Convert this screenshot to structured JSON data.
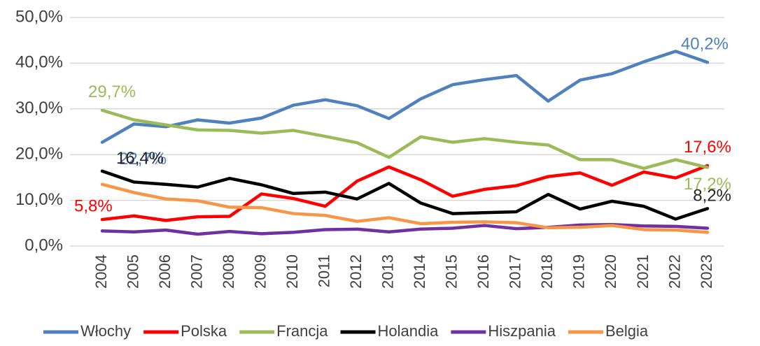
{
  "chart_data": {
    "type": "line",
    "categories": [
      "2004",
      "2005",
      "2006",
      "2007",
      "2008",
      "2009",
      "2010",
      "2011",
      "2012",
      "2013",
      "2014",
      "2015",
      "2016",
      "2017",
      "2018",
      "2019",
      "2020",
      "2021",
      "2022",
      "2023"
    ],
    "ylim": [
      0,
      50
    ],
    "yticks": [
      {
        "value": 0,
        "label": "0,0%"
      },
      {
        "value": 10,
        "label": "10,0%"
      },
      {
        "value": 20,
        "label": "20,0%"
      },
      {
        "value": 30,
        "label": "30,0%"
      },
      {
        "value": 40,
        "label": "40,0%"
      },
      {
        "value": 50,
        "label": "50,0%"
      }
    ],
    "grid": true,
    "legend": "bottom",
    "series": [
      {
        "name": "Włochy",
        "color": "#4f81bd",
        "values": [
          22.7,
          26.7,
          26.1,
          27.6,
          26.9,
          28.0,
          30.8,
          32.0,
          30.7,
          27.9,
          32.2,
          35.3,
          36.4,
          37.3,
          31.7,
          36.3,
          37.7,
          40.3,
          42.6,
          40.2
        ],
        "value_labels": [
          "22,7%",
          null,
          null,
          null,
          null,
          null,
          null,
          null,
          null,
          null,
          null,
          null,
          null,
          null,
          null,
          null,
          null,
          null,
          null,
          "40,2%"
        ]
      },
      {
        "name": "Polska",
        "color": "#ff0000",
        "values": [
          5.8,
          6.6,
          5.6,
          6.4,
          6.5,
          11.4,
          10.4,
          8.7,
          14.2,
          17.3,
          14.5,
          10.9,
          12.4,
          13.2,
          15.2,
          16.0,
          13.3,
          16.2,
          14.9,
          17.6
        ],
        "value_labels": [
          "5,8%",
          null,
          null,
          null,
          null,
          null,
          null,
          null,
          null,
          null,
          null,
          null,
          null,
          null,
          null,
          null,
          null,
          null,
          null,
          "17,6%"
        ]
      },
      {
        "name": "Francja",
        "color": "#9bbb59",
        "values": [
          29.7,
          27.6,
          26.5,
          25.4,
          25.3,
          24.7,
          25.3,
          24.0,
          22.6,
          19.4,
          23.9,
          22.7,
          23.5,
          22.7,
          22.1,
          18.9,
          18.9,
          17.0,
          18.9,
          17.2
        ],
        "value_labels": [
          "29,7%",
          null,
          null,
          null,
          null,
          null,
          null,
          null,
          null,
          null,
          null,
          null,
          null,
          null,
          null,
          null,
          null,
          null,
          null,
          "17,2%"
        ]
      },
      {
        "name": "Holandia",
        "color": "#000000",
        "values": [
          16.4,
          14.0,
          13.5,
          12.9,
          14.8,
          13.4,
          11.5,
          11.8,
          10.3,
          13.7,
          9.4,
          7.1,
          7.3,
          7.5,
          11.3,
          8.1,
          9.8,
          8.7,
          5.9,
          8.2
        ],
        "value_labels": [
          "16,4%",
          null,
          null,
          null,
          null,
          null,
          null,
          null,
          null,
          null,
          null,
          null,
          null,
          null,
          null,
          null,
          null,
          null,
          null,
          "8,2%"
        ]
      },
      {
        "name": "Hiszpania",
        "color": "#7030a0",
        "values": [
          3.3,
          3.1,
          3.5,
          2.6,
          3.2,
          2.7,
          3.0,
          3.6,
          3.7,
          3.1,
          3.7,
          3.9,
          4.5,
          3.8,
          4.1,
          4.6,
          4.7,
          4.4,
          4.3,
          3.9
        ]
      },
      {
        "name": "Belgia",
        "color": "#f79646",
        "values": [
          13.5,
          11.7,
          10.3,
          9.9,
          8.5,
          8.4,
          7.1,
          6.7,
          5.4,
          6.2,
          4.9,
          5.2,
          5.3,
          5.1,
          4.0,
          4.1,
          4.5,
          3.6,
          3.5,
          3.0
        ]
      }
    ]
  }
}
